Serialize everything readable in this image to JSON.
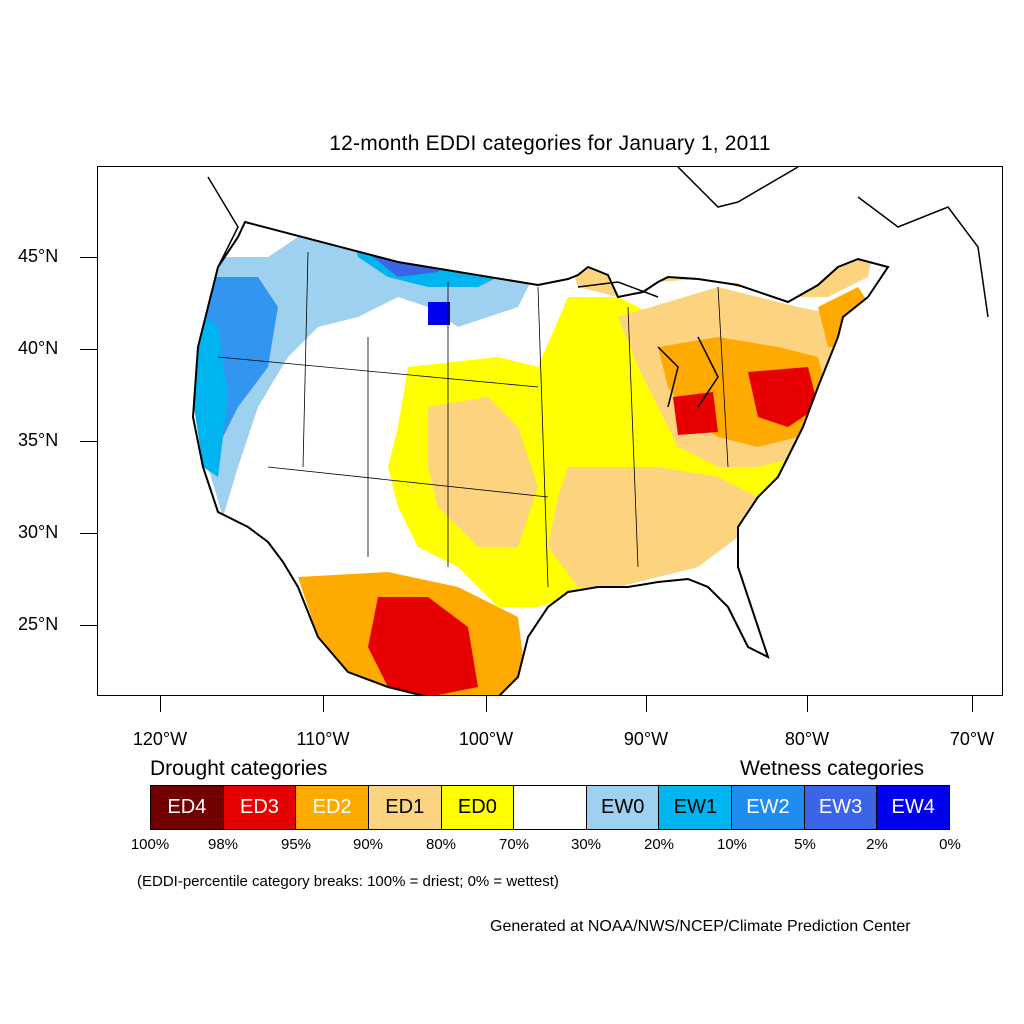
{
  "title": "12-month EDDI categories for January 1, 2011",
  "axes": {
    "y_labels": [
      "45°N",
      "40°N",
      "35°N",
      "30°N",
      "25°N"
    ],
    "x_labels": [
      "120°W",
      "110°W",
      "100°W",
      "90°W",
      "80°W",
      "70°W"
    ]
  },
  "legend": {
    "drought_heading": "Drought categories",
    "wetness_heading": "Wetness categories",
    "categories": [
      {
        "label": "ED4",
        "color": "#730000",
        "text_color": "#ffffff"
      },
      {
        "label": "ED3",
        "color": "#e60000",
        "text_color": "#ffffff"
      },
      {
        "label": "ED2",
        "color": "#ffaa00",
        "text_color": "#ffffff"
      },
      {
        "label": "ED1",
        "color": "#fcd37f",
        "text_color": "#000000"
      },
      {
        "label": "ED0",
        "color": "#ffff00",
        "text_color": "#000000"
      },
      {
        "label": "",
        "color": "#ffffff",
        "text_color": "#000000"
      },
      {
        "label": "EW0",
        "color": "#9ed0f0",
        "text_color": "#000000"
      },
      {
        "label": "EW1",
        "color": "#00b4f0",
        "text_color": "#000000"
      },
      {
        "label": "EW2",
        "color": "#1e8cf0",
        "text_color": "#ffffff"
      },
      {
        "label": "EW3",
        "color": "#3c64e6",
        "text_color": "#ffffff"
      },
      {
        "label": "EW4",
        "color": "#0000f0",
        "text_color": "#ffffff"
      }
    ],
    "percent_breaks": [
      "100%",
      "98%",
      "95%",
      "90%",
      "80%",
      "70%",
      "30%",
      "20%",
      "10%",
      "5%",
      "2%",
      "0%"
    ]
  },
  "note": "(EDDI-percentile category breaks: 100% = driest; 0% = wettest)",
  "credit": "Generated at NOAA/NWS/NCEP/Climate Prediction Center"
}
